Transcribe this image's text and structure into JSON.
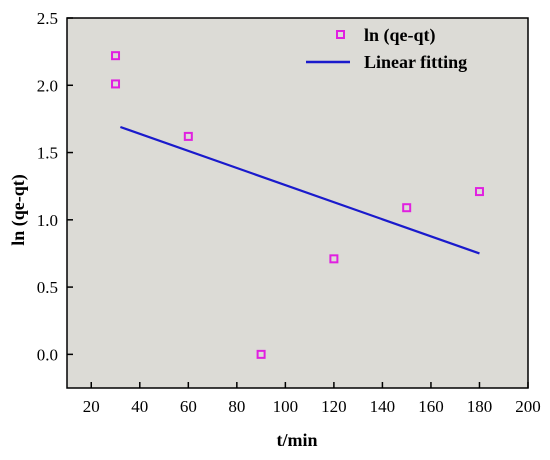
{
  "chart_data": {
    "type": "scatter",
    "title": "",
    "xlabel": "t/min",
    "ylabel": "ln (qe-qt)",
    "xlim": [
      10,
      200
    ],
    "ylim": [
      -0.25,
      2.5
    ],
    "xticks": [
      20,
      40,
      60,
      80,
      100,
      120,
      140,
      160,
      180,
      200
    ],
    "yticks": [
      0.0,
      0.5,
      1.0,
      1.5,
      2.0,
      2.5
    ],
    "xtick_labels": [
      "20",
      "40",
      "60",
      "80",
      "100",
      "120",
      "140",
      "160",
      "180",
      "200"
    ],
    "ytick_labels": [
      "0.0",
      "0.5",
      "1.0",
      "1.5",
      "2.0",
      "2.5"
    ],
    "grid": false,
    "legend_position": "top-right",
    "background_color": "#dcdbd6",
    "series": [
      {
        "name": "ln (qe-qt)",
        "type": "scatter",
        "marker": "open-square",
        "color": "#e020e0",
        "points": [
          {
            "x": 30,
            "y": 2.22
          },
          {
            "x": 30,
            "y": 2.01
          },
          {
            "x": 60,
            "y": 1.62
          },
          {
            "x": 90,
            "y": 0.0
          },
          {
            "x": 120,
            "y": 0.71
          },
          {
            "x": 150,
            "y": 1.09
          },
          {
            "x": 180,
            "y": 1.21
          }
        ]
      },
      {
        "name": "Linear fitting",
        "type": "line",
        "color": "#1a1acc",
        "points": [
          {
            "x": 32,
            "y": 1.69
          },
          {
            "x": 180,
            "y": 0.75
          }
        ]
      }
    ]
  }
}
